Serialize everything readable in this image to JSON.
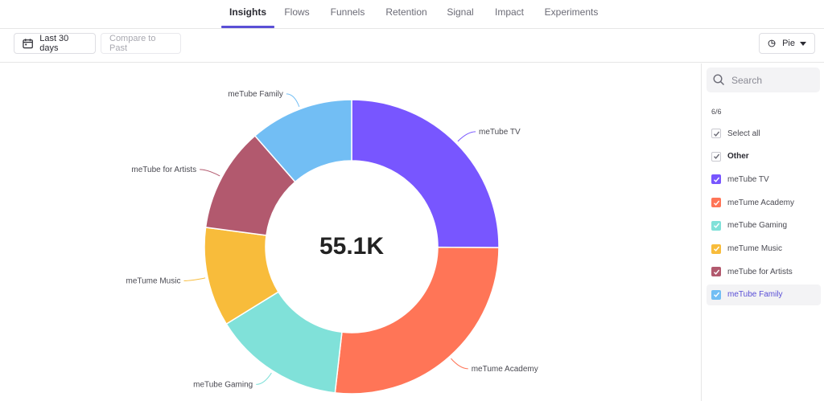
{
  "nav": {
    "tabs": [
      {
        "label": "Insights"
      },
      {
        "label": "Flows"
      },
      {
        "label": "Funnels"
      },
      {
        "label": "Retention"
      },
      {
        "label": "Signal"
      },
      {
        "label": "Impact"
      },
      {
        "label": "Experiments"
      }
    ],
    "active": "Insights"
  },
  "toolbar": {
    "date_range_label": "Last 30 days",
    "compare_label": "Compare to Past",
    "chart_type_label": "Pie"
  },
  "chart_data": {
    "type": "pie",
    "donut": true,
    "center_label": "55.1K",
    "start": "top",
    "direction": "clockwise",
    "categories": [
      "meTube TV",
      "meTume Academy",
      "meTube Gaming",
      "meTume Music",
      "meTube for Artists",
      "meTube Family"
    ],
    "values": [
      25.1,
      26.7,
      14.4,
      10.9,
      11.5,
      11.4
    ],
    "colors": [
      "#7856ff",
      "#ff7557",
      "#80e1d9",
      "#f8bc3b",
      "#b2596e",
      "#72bef4"
    ]
  },
  "sidebar": {
    "search_placeholder": "Search",
    "count": "6/6",
    "items": [
      {
        "label": "Select all",
        "checked": true,
        "color": "",
        "bold": false
      },
      {
        "label": "Other",
        "checked": true,
        "color": "",
        "bold": true
      },
      {
        "label": "meTube TV",
        "checked": true,
        "color": "#7856ff",
        "bold": false
      },
      {
        "label": "meTume Academy",
        "checked": true,
        "color": "#ff7557",
        "bold": false
      },
      {
        "label": "meTube Gaming",
        "checked": true,
        "color": "#80e1d9",
        "bold": false
      },
      {
        "label": "meTume Music",
        "checked": true,
        "color": "#f8bc3b",
        "bold": false
      },
      {
        "label": "meTube for Artists",
        "checked": true,
        "color": "#b2596e",
        "bold": false
      },
      {
        "label": "meTube Family",
        "checked": true,
        "color": "#72bef4",
        "bold": false,
        "highlight": true
      }
    ]
  }
}
